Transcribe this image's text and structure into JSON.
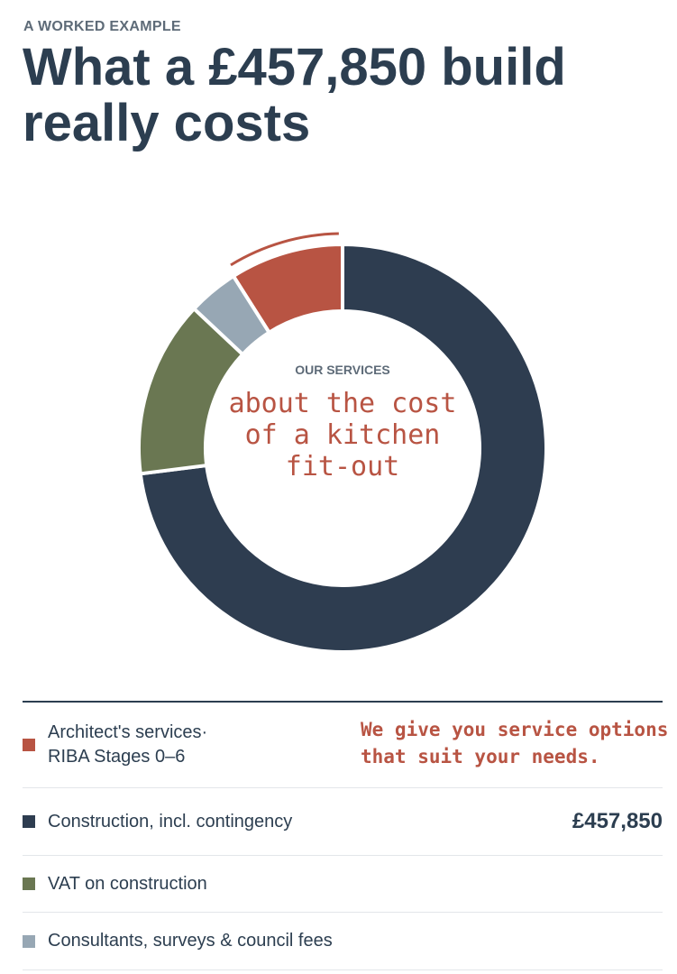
{
  "header": {
    "eyebrow": "A WORKED EXAMPLE",
    "title": "What a £457,850 build really costs"
  },
  "chart_data": {
    "type": "donut",
    "center_label": "OUR SERVICES",
    "center_note": "about the cost of a kitchen fit-out",
    "categories": [
      "Architect's services·\nRIBA Stages 0–6",
      "Construction, incl. contingency",
      "VAT on construction",
      "Consultants, surveys & council fees"
    ],
    "values": [
      9,
      73,
      14,
      4
    ],
    "colors": [
      "#b85443",
      "#2e3d50",
      "#6a7752",
      "#97a7b4"
    ],
    "amounts": [
      null,
      "£457,850",
      null,
      null
    ]
  },
  "annotation": "We give you service options that suit your needs."
}
